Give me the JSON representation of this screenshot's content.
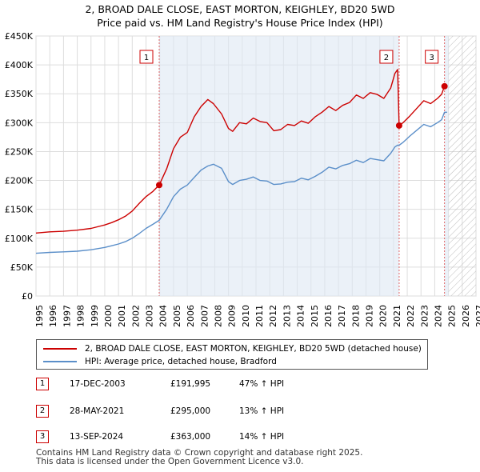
{
  "title": "2, BROAD DALE CLOSE, EAST MORTON, KEIGHLEY, BD20 5WD",
  "subtitle": "Price paid vs. HM Land Registry's House Price Index (HPI)",
  "colors": {
    "property_line": "#cc0000",
    "hpi_line": "#5b8fc9",
    "sale_fill": "#dde7f4",
    "marker_dash": "#e06666",
    "hatch": "#bbbbbb",
    "grid": "#dddddd"
  },
  "chart_data": {
    "type": "line",
    "ylim": [
      0,
      450000
    ],
    "xlim": [
      1995,
      2027
    ],
    "y_ticks": [
      0,
      50000,
      100000,
      150000,
      200000,
      250000,
      300000,
      350000,
      400000,
      450000
    ],
    "y_tick_labels": [
      "£0",
      "£50K",
      "£100K",
      "£150K",
      "£200K",
      "£250K",
      "£300K",
      "£350K",
      "£400K",
      "£450K"
    ],
    "x_ticks": [
      1995,
      1996,
      1997,
      1998,
      1999,
      2000,
      2001,
      2002,
      2003,
      2004,
      2005,
      2006,
      2007,
      2008,
      2009,
      2010,
      2011,
      2012,
      2013,
      2014,
      2015,
      2016,
      2017,
      2018,
      2019,
      2020,
      2021,
      2022,
      2023,
      2024,
      2025,
      2026,
      2027
    ],
    "x_tick_labels": [
      "1995",
      "1996",
      "1997",
      "1998",
      "1999",
      "2000",
      "2001",
      "2002",
      "2003",
      "2004",
      "2005",
      "2006",
      "2007",
      "2008",
      "2009",
      "2010",
      "2011",
      "2012",
      "2013",
      "2014",
      "2015",
      "2016",
      "2017",
      "2018",
      "2019",
      "2020",
      "2021",
      "2022",
      "2023",
      "2024",
      "2025",
      "2026",
      "2027"
    ],
    "forecast_from": 2025.0,
    "series": [
      {
        "name": "2, BROAD DALE CLOSE, EAST MORTON, KEIGHLEY, BD20 5WD (detached house)",
        "x": [
          1995.0,
          1996.0,
          1997.0,
          1998.0,
          1999.0,
          2000.0,
          2000.5,
          2001.0,
          2001.5,
          2002.0,
          2002.5,
          2003.0,
          2003.5,
          2003.96,
          2004.5,
          2005.0,
          2005.5,
          2006.0,
          2006.5,
          2007.0,
          2007.5,
          2007.9,
          2008.5,
          2009.0,
          2009.3,
          2009.8,
          2010.3,
          2010.8,
          2011.3,
          2011.8,
          2012.3,
          2012.8,
          2013.3,
          2013.8,
          2014.3,
          2014.8,
          2015.3,
          2015.8,
          2016.3,
          2016.8,
          2017.3,
          2017.8,
          2018.3,
          2018.8,
          2019.3,
          2019.8,
          2020.3,
          2020.8,
          2021.1,
          2021.3,
          2021.41,
          2021.7,
          2022.2,
          2022.7,
          2023.2,
          2023.7,
          2024.2,
          2024.5,
          2024.71,
          2024.9
        ],
        "values": [
          109000,
          111000,
          112000,
          114000,
          117000,
          123000,
          127000,
          132000,
          138000,
          147000,
          160000,
          172000,
          181000,
          191995,
          220000,
          255000,
          275000,
          283000,
          310000,
          328000,
          340000,
          333000,
          315000,
          290000,
          285000,
          300000,
          298000,
          308000,
          302000,
          300000,
          286000,
          288000,
          297000,
          295000,
          303000,
          299000,
          310000,
          318000,
          328000,
          321000,
          330000,
          335000,
          348000,
          342000,
          352000,
          349000,
          342000,
          360000,
          385000,
          392000,
          295000,
          300000,
          312000,
          325000,
          338000,
          333000,
          342000,
          349000,
          363000,
          364000
        ]
      },
      {
        "name": "HPI: Average price, detached house, Bradford",
        "x": [
          1995.0,
          1996.0,
          1997.0,
          1998.0,
          1999.0,
          2000.0,
          2000.5,
          2001.0,
          2001.5,
          2002.0,
          2002.5,
          2003.0,
          2003.5,
          2003.96,
          2004.5,
          2005.0,
          2005.5,
          2006.0,
          2006.5,
          2007.0,
          2007.5,
          2007.9,
          2008.5,
          2009.0,
          2009.3,
          2009.8,
          2010.3,
          2010.8,
          2011.3,
          2011.8,
          2012.3,
          2012.8,
          2013.3,
          2013.8,
          2014.3,
          2014.8,
          2015.3,
          2015.8,
          2016.3,
          2016.8,
          2017.3,
          2017.8,
          2018.3,
          2018.8,
          2019.3,
          2019.8,
          2020.3,
          2020.8,
          2021.1,
          2021.3,
          2021.41,
          2021.7,
          2022.2,
          2022.7,
          2023.2,
          2023.7,
          2024.2,
          2024.5,
          2024.71,
          2024.9
        ],
        "values": [
          74000,
          75500,
          76500,
          77500,
          80000,
          84000,
          87000,
          90000,
          94000,
          100000,
          108000,
          117000,
          124000,
          131000,
          150000,
          172000,
          185000,
          192000,
          205000,
          218000,
          225000,
          228000,
          221000,
          198000,
          193000,
          200000,
          202000,
          206000,
          200000,
          199000,
          193000,
          194000,
          197000,
          198000,
          204000,
          201000,
          207000,
          214000,
          223000,
          220000,
          226000,
          229000,
          235000,
          231000,
          238000,
          236000,
          234000,
          247000,
          258000,
          261000,
          261000,
          266000,
          277000,
          287000,
          297000,
          293000,
          300000,
          305000,
          318000,
          318000
        ]
      }
    ],
    "sales": [
      {
        "num": "1",
        "year": 2003.96,
        "price": 191995
      },
      {
        "num": "2",
        "year": 2021.41,
        "price": 295000
      },
      {
        "num": "3",
        "year": 2024.71,
        "price": 363000
      }
    ]
  },
  "legend": {
    "property_label": "2, BROAD DALE CLOSE, EAST MORTON, KEIGHLEY, BD20 5WD (detached house)",
    "hpi_label": "HPI: Average price, detached house, Bradford"
  },
  "transactions": [
    {
      "num": "1",
      "date": "17-DEC-2003",
      "price": "£191,995",
      "hpi": "47% ↑ HPI"
    },
    {
      "num": "2",
      "date": "28-MAY-2021",
      "price": "£295,000",
      "hpi": "13% ↑ HPI"
    },
    {
      "num": "3",
      "date": "13-SEP-2024",
      "price": "£363,000",
      "hpi": "14% ↑ HPI"
    }
  ],
  "footer": {
    "line1": "Contains HM Land Registry data © Crown copyright and database right 2025.",
    "line2": "This data is licensed under the Open Government Licence v3.0."
  }
}
